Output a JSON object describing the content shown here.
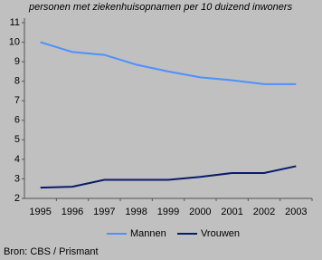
{
  "chart_data": {
    "type": "line",
    "title": "personen met ziekenhuisopnamen per 10 duizend inwoners",
    "categories": [
      "1995",
      "1996",
      "1997",
      "1998",
      "1999",
      "2000",
      "2001",
      "2002",
      "2003"
    ],
    "series": [
      {
        "name": "Mannen",
        "color": "#4f8fff",
        "values": [
          10.0,
          9.5,
          9.35,
          8.85,
          8.5,
          8.2,
          8.05,
          7.85,
          7.85
        ]
      },
      {
        "name": "Vrouwen",
        "color": "#0a1a6e",
        "values": [
          2.55,
          2.6,
          2.95,
          2.95,
          2.95,
          3.1,
          3.3,
          3.3,
          3.65
        ]
      }
    ],
    "ylim": [
      2,
      11
    ],
    "yticks": [
      2,
      3,
      4,
      5,
      6,
      7,
      8,
      9,
      10,
      11
    ],
    "source": "Bron: CBS / Prismant"
  }
}
